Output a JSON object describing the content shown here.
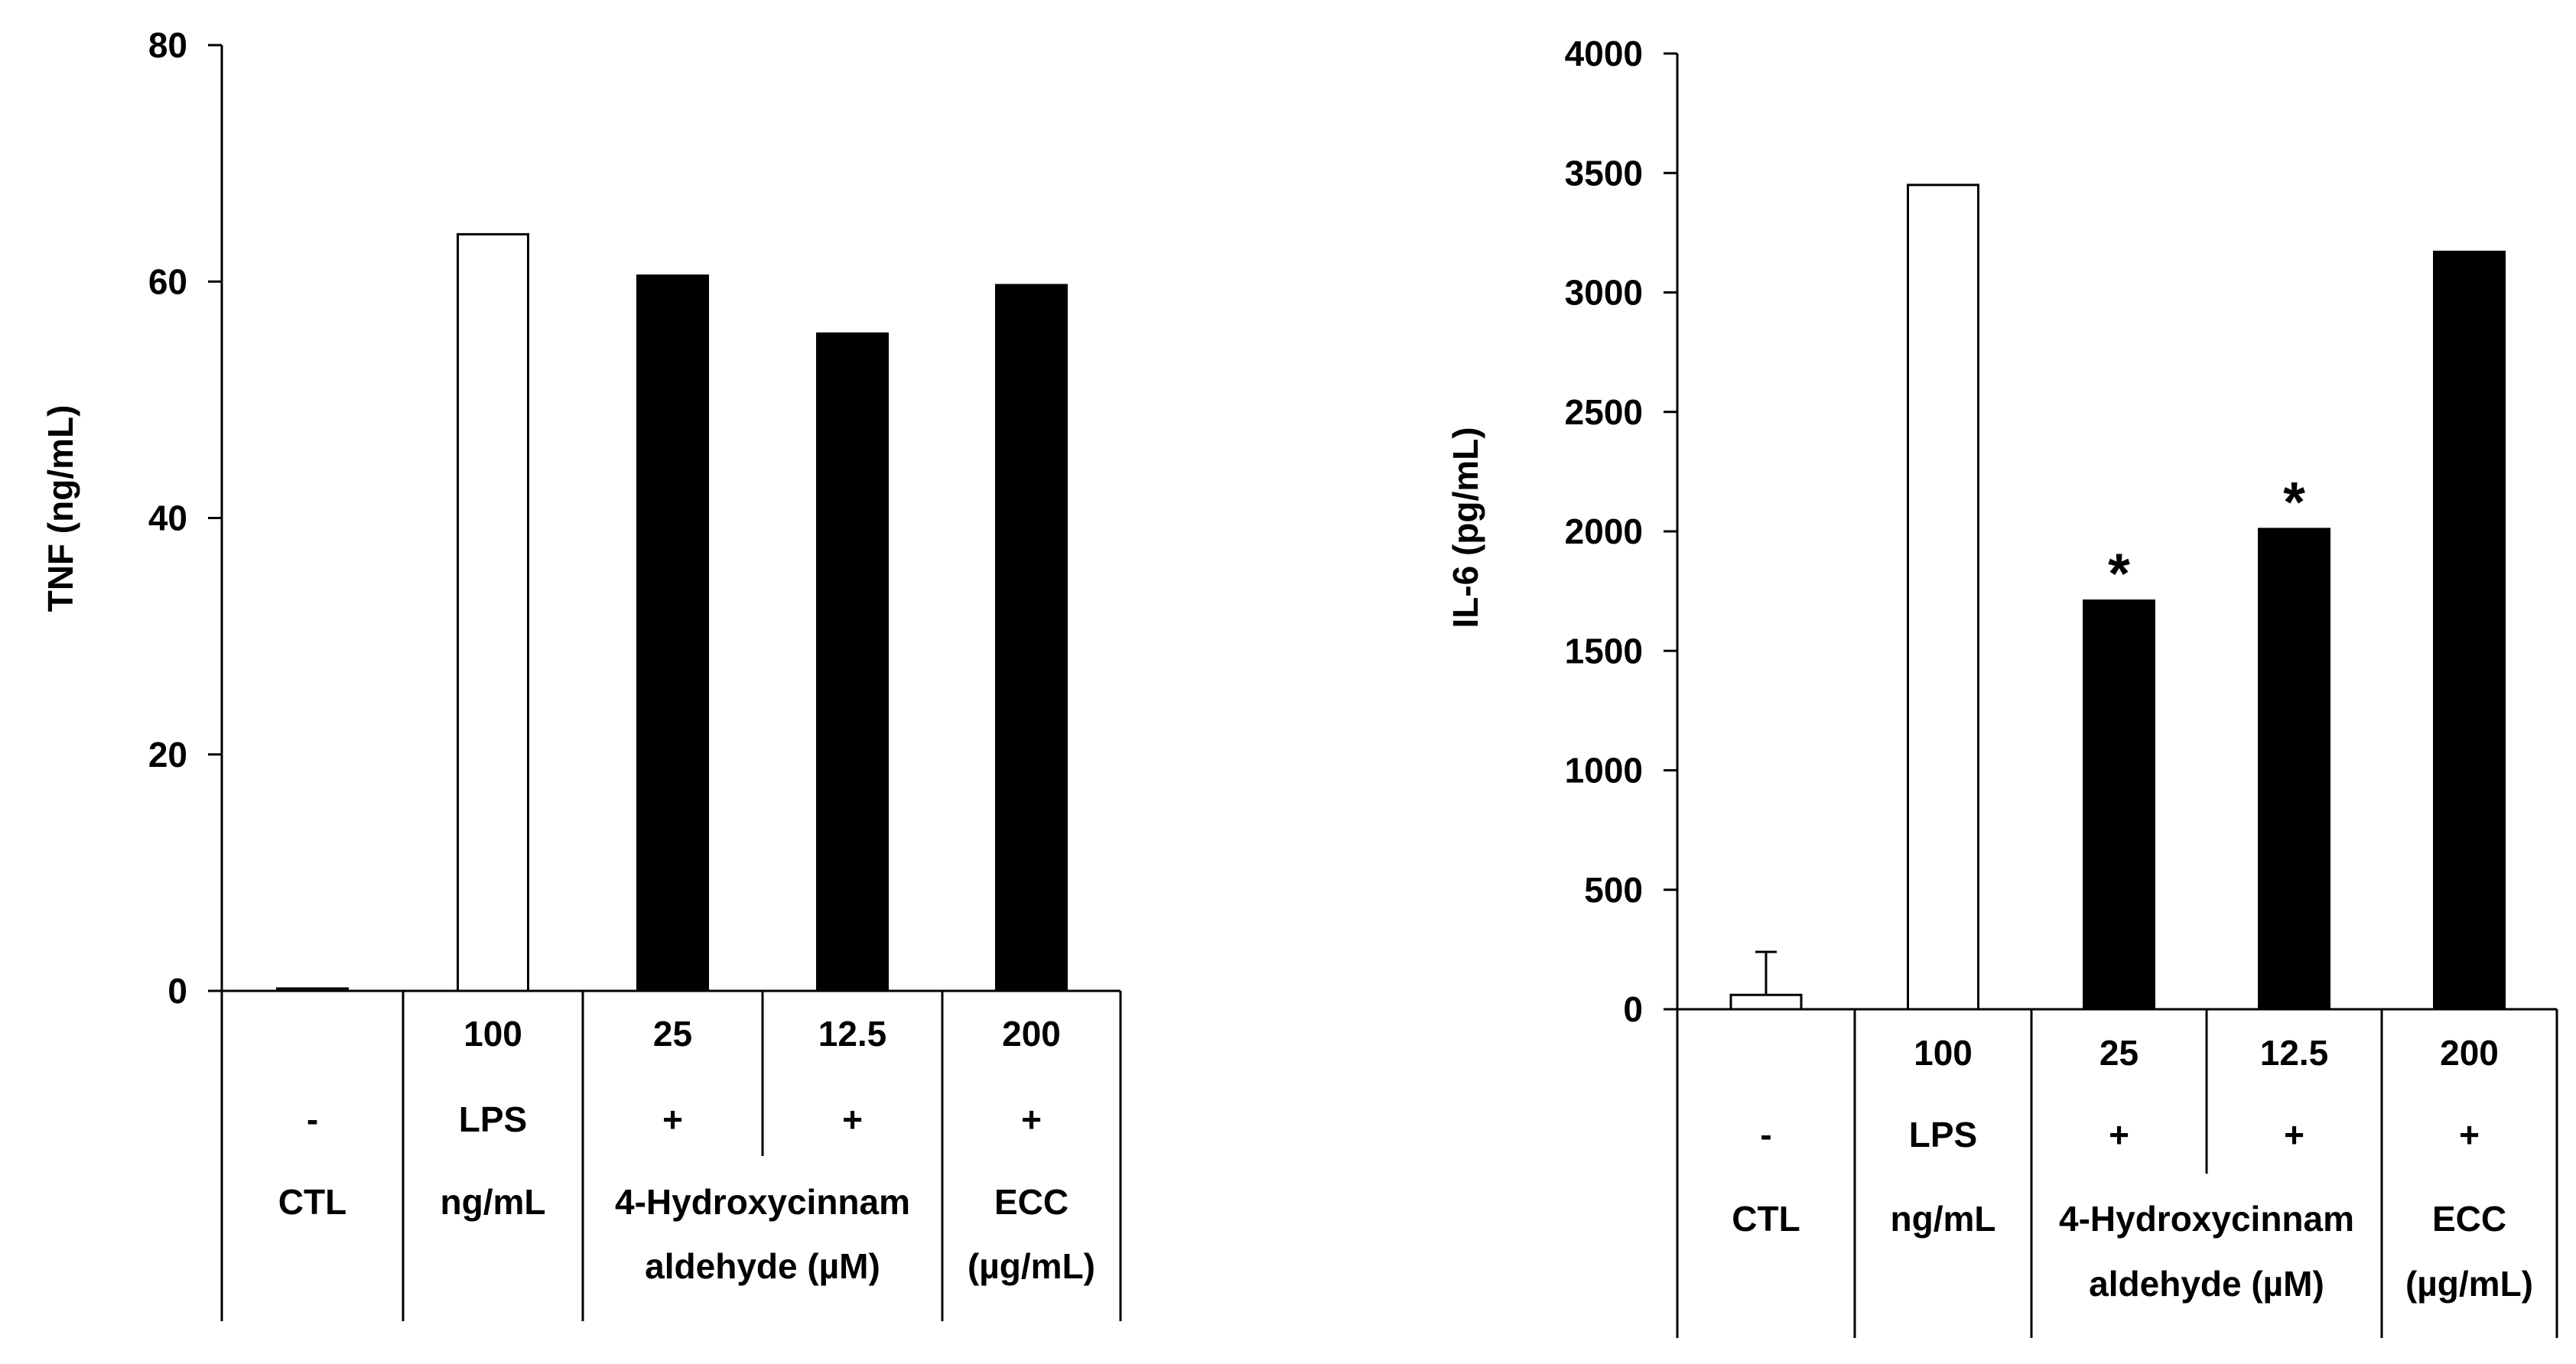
{
  "colors": {
    "filled": "#000000",
    "open": "#ffffff",
    "stroke": "#000000"
  },
  "chart_data": [
    {
      "type": "bar",
      "ylabel": "TNF (ng/mL)",
      "ylim": [
        0,
        80
      ],
      "yticks": [
        "0",
        "20",
        "40",
        "60",
        "80"
      ],
      "ytick_values": [
        0,
        20,
        40,
        60,
        80
      ],
      "categories": [
        "CTL",
        "LPS 100 ng/mL",
        "4-Hydroxycinnamaldehyde 25 µM",
        "4-Hydroxycinnamaldehyde 12.5 µM",
        "ECC 200 µg/mL"
      ],
      "values": [
        0.2,
        64,
        60.5,
        55.6,
        59.7
      ],
      "fills": [
        "open",
        "open",
        "filled",
        "filled",
        "filled"
      ],
      "error_upper": [
        null,
        null,
        null,
        null,
        null
      ],
      "significance": [
        "",
        "",
        "",
        "",
        ""
      ],
      "table": {
        "row1": [
          "",
          "100",
          "25",
          "12.5",
          "200"
        ],
        "row2": [
          "-",
          "LPS",
          "+",
          "+",
          "+"
        ],
        "row3": [
          "CTL",
          "ng/mL",
          "4-Hydroxycinnam",
          "",
          "ECC"
        ],
        "row4": [
          "",
          "",
          "aldehyde (µM)",
          "",
          "(µg/mL)"
        ]
      }
    },
    {
      "type": "bar",
      "ylabel": "IL-6 (pg/mL)",
      "ylim": [
        0,
        4000
      ],
      "yticks": [
        "0",
        "500",
        "1000",
        "1500",
        "2000",
        "2500",
        "3000",
        "3500",
        "4000"
      ],
      "ytick_values": [
        0,
        500,
        1000,
        1500,
        2000,
        2500,
        3000,
        3500,
        4000
      ],
      "categories": [
        "CTL",
        "LPS 100 ng/mL",
        "4-Hydroxycinnamaldehyde 25 µM",
        "4-Hydroxycinnamaldehyde 12.5 µM",
        "ECC 200 µg/mL"
      ],
      "values": [
        60,
        3450,
        1710,
        2010,
        3170
      ],
      "fills": [
        "open",
        "open",
        "filled",
        "filled",
        "filled"
      ],
      "error_upper": [
        180,
        null,
        null,
        null,
        null
      ],
      "significance": [
        "",
        "",
        "*",
        "*",
        ""
      ],
      "table": {
        "row1": [
          "",
          "100",
          "25",
          "12.5",
          "200"
        ],
        "row2": [
          "-",
          "LPS",
          "+",
          "+",
          "+"
        ],
        "row3": [
          "CTL",
          "ng/mL",
          "4-Hydroxycinnam",
          "",
          "ECC"
        ],
        "row4": [
          "",
          "",
          "aldehyde (µM)",
          "",
          "(µg/mL)"
        ]
      }
    }
  ]
}
